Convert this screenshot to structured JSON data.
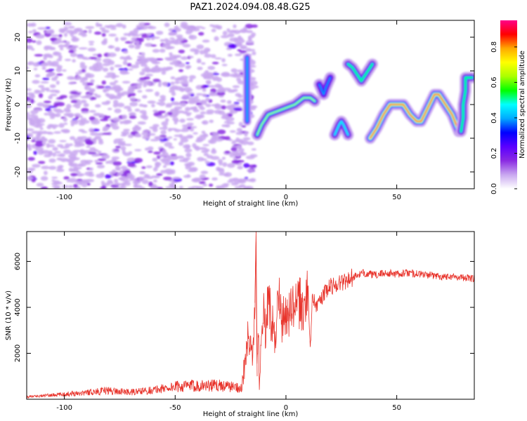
{
  "title": "PAZ1.2024.094.08.48.G25",
  "chart_data": [
    {
      "type": "heatmap",
      "xlabel": "Height of straight line (km)",
      "ylabel": "Frequency (Hz)",
      "xlim": [
        -117,
        85
      ],
      "ylim": [
        -25,
        25
      ],
      "xticks": [
        -100,
        -50,
        0,
        50
      ],
      "yticks": [
        -20,
        -10,
        0,
        10,
        20
      ],
      "colorbar": {
        "label": "Normalized spectral amplitude",
        "range": [
          0,
          0.95
        ],
        "ticks": [
          0.0,
          0.2,
          0.4,
          0.6,
          0.8
        ],
        "colors": [
          "#ffffff",
          "#c9a8f0",
          "#8a2be2",
          "#5a00ff",
          "#0000ff",
          "#00aaff",
          "#00ffff",
          "#00ff00",
          "#aaff00",
          "#ffff00",
          "#ffaa00",
          "#ff0000",
          "#ff0088"
        ]
      },
      "noise_region": {
        "x": [
          -117,
          -14
        ],
        "y": [
          -25,
          24
        ],
        "typical_amplitude": 0.15
      },
      "ridge_segments": [
        {
          "points": [
            [
              -13,
              -9
            ],
            [
              -11,
              -6
            ],
            [
              -8,
              -3
            ],
            [
              -4,
              -2
            ],
            [
              0,
              -1
            ],
            [
              4,
              0
            ],
            [
              8,
              2
            ],
            [
              11,
              2
            ],
            [
              13,
              1
            ]
          ],
          "peak_amplitude": 0.6
        },
        {
          "points": [
            [
              15,
              6
            ],
            [
              17,
              3
            ],
            [
              18,
              5
            ],
            [
              20,
              8
            ]
          ],
          "peak_amplitude": 0.4
        },
        {
          "points": [
            [
              22,
              -9
            ],
            [
              24,
              -6
            ],
            [
              25,
              -5
            ],
            [
              26,
              -6
            ],
            [
              28,
              -9
            ]
          ],
          "peak_amplitude": 0.45
        },
        {
          "points": [
            [
              28,
              12
            ],
            [
              30,
              11
            ],
            [
              32,
              9
            ],
            [
              34,
              7
            ],
            [
              36,
              9
            ],
            [
              38,
              11
            ],
            [
              39,
              12
            ]
          ],
          "peak_amplitude": 0.55
        },
        {
          "points": [
            [
              38,
              -10
            ],
            [
              41,
              -7
            ],
            [
              44,
              -3
            ],
            [
              47,
              0
            ],
            [
              50,
              0
            ],
            [
              53,
              0
            ],
            [
              56,
              -3
            ],
            [
              59,
              -5
            ],
            [
              61,
              -5
            ],
            [
              64,
              -1
            ],
            [
              67,
              3
            ],
            [
              69,
              3
            ],
            [
              72,
              0
            ],
            [
              75,
              -3
            ],
            [
              78,
              -8
            ]
          ],
          "peak_amplitude": 0.9
        },
        {
          "points": [
            [
              79,
              -8
            ],
            [
              80,
              -4
            ],
            [
              80,
              0
            ],
            [
              81,
              4
            ],
            [
              81,
              8
            ],
            [
              84,
              8
            ]
          ],
          "peak_amplitude": 0.55
        }
      ],
      "vertical_band": {
        "x": -17.5,
        "y": [
          -5,
          14
        ],
        "peak_amplitude": 0.4
      }
    },
    {
      "type": "line",
      "xlabel": "Height of straight line (km)",
      "ylabel": "SNR (10 * v/v)",
      "xlim": [
        -117,
        85
      ],
      "ylim": [
        0,
        7300
      ],
      "xticks": [
        -100,
        -50,
        0,
        50
      ],
      "yticks": [
        2000,
        4000,
        6000
      ],
      "color": "#e8332b",
      "series": [
        {
          "x": [
            -117,
            -110,
            -100,
            -90,
            -80,
            -70,
            -60,
            -50,
            -40,
            -30,
            -25,
            -20,
            -17,
            -15,
            -14,
            -13.5,
            -13,
            -12.5,
            -12,
            -11,
            -10,
            -9,
            -8,
            -7,
            -6,
            -5,
            -4,
            -3,
            -2,
            -1,
            0,
            2,
            4,
            6,
            8,
            10,
            11,
            12,
            14,
            16,
            18,
            20,
            25,
            30,
            35,
            40,
            45,
            50,
            55,
            60,
            65,
            70,
            75,
            80,
            85
          ],
          "y": [
            100,
            150,
            220,
            300,
            380,
            300,
            400,
            550,
            600,
            600,
            550,
            500,
            2600,
            1800,
            4200,
            7300,
            1000,
            3800,
            500,
            3000,
            3900,
            2700,
            4800,
            3600,
            3200,
            2600,
            3800,
            4200,
            3200,
            3600,
            3600,
            3800,
            4000,
            4200,
            3900,
            4800,
            2100,
            4600,
            4000,
            4400,
            4700,
            4900,
            5100,
            5300,
            5500,
            5400,
            5500,
            5450,
            5500,
            5450,
            5400,
            5350,
            5350,
            5300,
            5250
          ]
        }
      ]
    }
  ]
}
